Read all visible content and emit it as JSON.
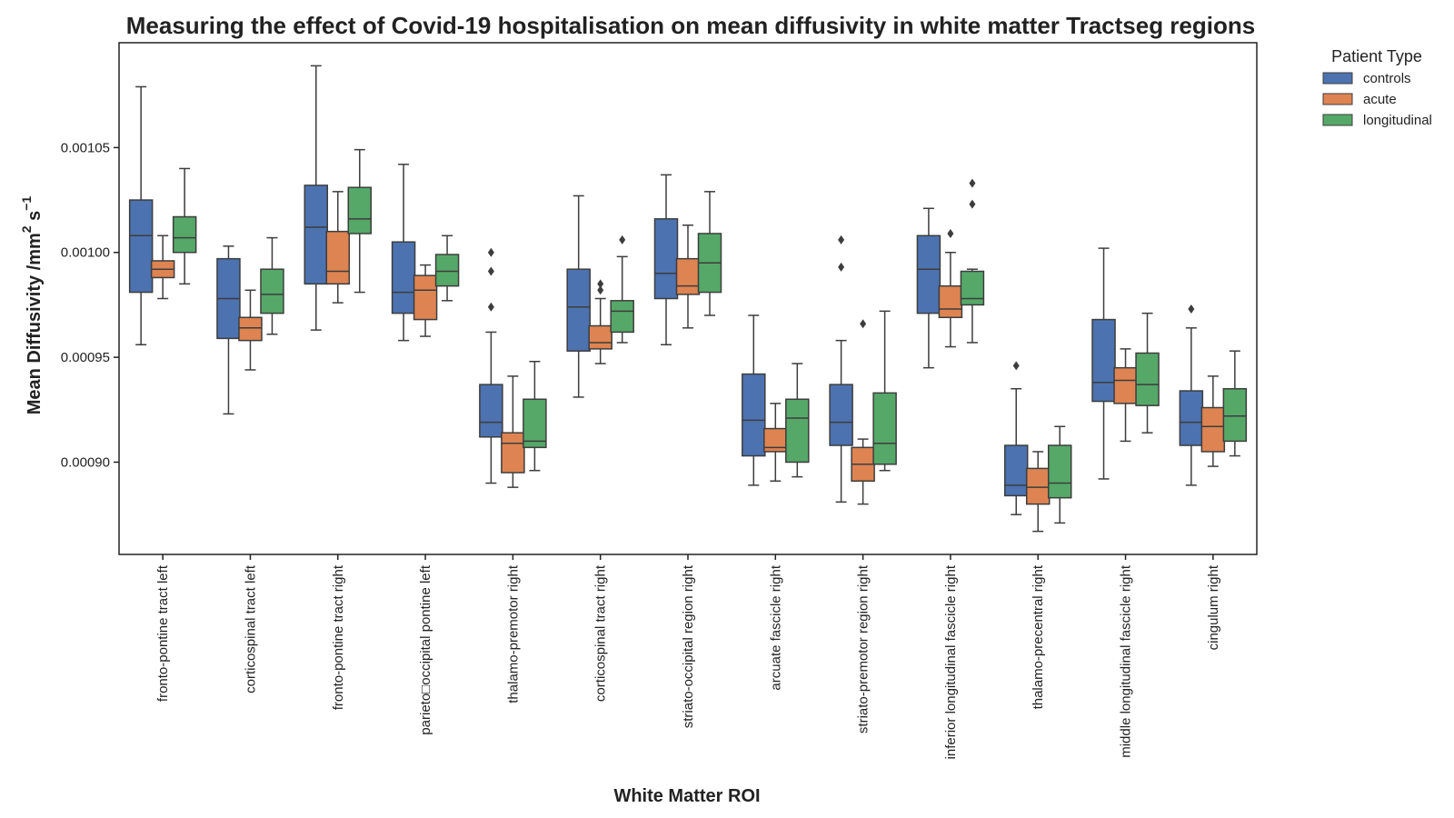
{
  "chart_data": {
    "type": "box",
    "title": "Measuring the effect of Covid-19 hospitalisation on mean diffusivity in white matter Tractseg regions",
    "xlabel": "White Matter ROI",
    "ylabel_main": "Mean Diffusivity /mm",
    "ylabel_sup1": "2",
    "ylabel_mid": " s",
    "ylabel_sup2": "−1",
    "ylim": [
      0.000856,
      0.0011
    ],
    "yticks": [
      0.0009,
      0.00095,
      0.001,
      0.00105
    ],
    "ytick_labels": [
      "0.00090",
      "0.00095",
      "0.00100",
      "0.00105"
    ],
    "legend": {
      "title": "Patient Type",
      "position": "outside-top-right"
    },
    "series": [
      {
        "name": "controls",
        "color": "#4c72b0"
      },
      {
        "name": "acute",
        "color": "#dd8452"
      },
      {
        "name": "longitudinal",
        "color": "#55a868"
      }
    ],
    "categories": [
      "fronto-pontine tract left",
      "corticospinal tract left",
      "fronto-pontine tract right",
      "parieto□occipital pontine left",
      "thalamo-premotor right",
      "corticospinal tract right",
      "striato-occipital region right",
      "arcuate fascicle right",
      "striato-premotor region right",
      "inferior longitudinal fascicle right",
      "thalamo-precentral right",
      "middle longitudinal fascicle right",
      "cingulum right"
    ],
    "boxes": [
      [
        {
          "whislo": 0.000956,
          "q1": 0.000981,
          "med": 0.001008,
          "q3": 0.001025,
          "whishi": 0.001079,
          "fliers": []
        },
        {
          "whislo": 0.000978,
          "q1": 0.000988,
          "med": 0.000992,
          "q3": 0.000996,
          "whishi": 0.001008,
          "fliers": []
        },
        {
          "whislo": 0.000985,
          "q1": 0.001,
          "med": 0.001007,
          "q3": 0.001017,
          "whishi": 0.00104,
          "fliers": []
        }
      ],
      [
        {
          "whislo": 0.000923,
          "q1": 0.000959,
          "med": 0.000978,
          "q3": 0.000997,
          "whishi": 0.001003,
          "fliers": []
        },
        {
          "whislo": 0.000944,
          "q1": 0.000958,
          "med": 0.000964,
          "q3": 0.000969,
          "whishi": 0.000982,
          "fliers": []
        },
        {
          "whislo": 0.000961,
          "q1": 0.000971,
          "med": 0.00098,
          "q3": 0.000992,
          "whishi": 0.001007,
          "fliers": []
        }
      ],
      [
        {
          "whislo": 0.000963,
          "q1": 0.000985,
          "med": 0.001012,
          "q3": 0.001032,
          "whishi": 0.001089,
          "fliers": []
        },
        {
          "whislo": 0.000976,
          "q1": 0.000985,
          "med": 0.000991,
          "q3": 0.00101,
          "whishi": 0.001029,
          "fliers": []
        },
        {
          "whislo": 0.000981,
          "q1": 0.001009,
          "med": 0.001016,
          "q3": 0.001031,
          "whishi": 0.001049,
          "fliers": []
        }
      ],
      [
        {
          "whislo": 0.000958,
          "q1": 0.000971,
          "med": 0.000981,
          "q3": 0.001005,
          "whishi": 0.001042,
          "fliers": []
        },
        {
          "whislo": 0.00096,
          "q1": 0.000968,
          "med": 0.000982,
          "q3": 0.000989,
          "whishi": 0.000994,
          "fliers": []
        },
        {
          "whislo": 0.000977,
          "q1": 0.000984,
          "med": 0.000991,
          "q3": 0.000999,
          "whishi": 0.001008,
          "fliers": []
        }
      ],
      [
        {
          "whislo": 0.00089,
          "q1": 0.000912,
          "med": 0.000919,
          "q3": 0.000937,
          "whishi": 0.000962,
          "fliers": [
            0.000974,
            0.000991,
            0.001
          ]
        },
        {
          "whislo": 0.000888,
          "q1": 0.000895,
          "med": 0.000909,
          "q3": 0.000914,
          "whishi": 0.000941,
          "fliers": []
        },
        {
          "whislo": 0.000896,
          "q1": 0.000907,
          "med": 0.00091,
          "q3": 0.00093,
          "whishi": 0.000948,
          "fliers": []
        }
      ],
      [
        {
          "whislo": 0.000931,
          "q1": 0.000953,
          "med": 0.000974,
          "q3": 0.000992,
          "whishi": 0.001027,
          "fliers": []
        },
        {
          "whislo": 0.000947,
          "q1": 0.000954,
          "med": 0.000957,
          "q3": 0.000965,
          "whishi": 0.000978,
          "fliers": [
            0.000982,
            0.000985
          ]
        },
        {
          "whislo": 0.000957,
          "q1": 0.000962,
          "med": 0.000972,
          "q3": 0.000977,
          "whishi": 0.000998,
          "fliers": [
            0.001006
          ]
        }
      ],
      [
        {
          "whislo": 0.000956,
          "q1": 0.000978,
          "med": 0.00099,
          "q3": 0.001016,
          "whishi": 0.001037,
          "fliers": []
        },
        {
          "whislo": 0.000964,
          "q1": 0.00098,
          "med": 0.000984,
          "q3": 0.000997,
          "whishi": 0.001013,
          "fliers": []
        },
        {
          "whislo": 0.00097,
          "q1": 0.000981,
          "med": 0.000995,
          "q3": 0.001009,
          "whishi": 0.001029,
          "fliers": []
        }
      ],
      [
        {
          "whislo": 0.000889,
          "q1": 0.000903,
          "med": 0.00092,
          "q3": 0.000942,
          "whishi": 0.00097,
          "fliers": []
        },
        {
          "whislo": 0.000891,
          "q1": 0.000905,
          "med": 0.000907,
          "q3": 0.000916,
          "whishi": 0.000928,
          "fliers": []
        },
        {
          "whislo": 0.000893,
          "q1": 0.0009,
          "med": 0.000921,
          "q3": 0.00093,
          "whishi": 0.000947,
          "fliers": []
        }
      ],
      [
        {
          "whislo": 0.000881,
          "q1": 0.000908,
          "med": 0.000919,
          "q3": 0.000937,
          "whishi": 0.000958,
          "fliers": [
            0.000993,
            0.001006
          ]
        },
        {
          "whislo": 0.00088,
          "q1": 0.000891,
          "med": 0.000899,
          "q3": 0.000907,
          "whishi": 0.000911,
          "fliers": [
            0.000966
          ]
        },
        {
          "whislo": 0.000896,
          "q1": 0.000899,
          "med": 0.000909,
          "q3": 0.000933,
          "whishi": 0.000972,
          "fliers": []
        }
      ],
      [
        {
          "whislo": 0.000945,
          "q1": 0.000971,
          "med": 0.000992,
          "q3": 0.001008,
          "whishi": 0.001021,
          "fliers": []
        },
        {
          "whislo": 0.000955,
          "q1": 0.000969,
          "med": 0.000973,
          "q3": 0.000984,
          "whishi": 0.001,
          "fliers": [
            0.001009
          ]
        },
        {
          "whislo": 0.000957,
          "q1": 0.000975,
          "med": 0.000978,
          "q3": 0.000991,
          "whishi": 0.000992,
          "fliers": [
            0.001023,
            0.001033
          ]
        }
      ],
      [
        {
          "whislo": 0.000875,
          "q1": 0.000884,
          "med": 0.000889,
          "q3": 0.000908,
          "whishi": 0.000935,
          "fliers": [
            0.000946
          ]
        },
        {
          "whislo": 0.000867,
          "q1": 0.00088,
          "med": 0.000888,
          "q3": 0.000897,
          "whishi": 0.000905,
          "fliers": []
        },
        {
          "whislo": 0.000871,
          "q1": 0.000883,
          "med": 0.00089,
          "q3": 0.000908,
          "whishi": 0.000917,
          "fliers": []
        }
      ],
      [
        {
          "whislo": 0.000892,
          "q1": 0.000929,
          "med": 0.000938,
          "q3": 0.000968,
          "whishi": 0.001002,
          "fliers": []
        },
        {
          "whislo": 0.00091,
          "q1": 0.000928,
          "med": 0.000939,
          "q3": 0.000945,
          "whishi": 0.000954,
          "fliers": []
        },
        {
          "whislo": 0.000914,
          "q1": 0.000927,
          "med": 0.000937,
          "q3": 0.000952,
          "whishi": 0.000971,
          "fliers": []
        }
      ],
      [
        {
          "whislo": 0.000889,
          "q1": 0.000908,
          "med": 0.000919,
          "q3": 0.000934,
          "whishi": 0.000964,
          "fliers": [
            0.000973
          ]
        },
        {
          "whislo": 0.000898,
          "q1": 0.000905,
          "med": 0.000917,
          "q3": 0.000926,
          "whishi": 0.000941,
          "fliers": []
        },
        {
          "whislo": 0.000903,
          "q1": 0.00091,
          "med": 0.000922,
          "q3": 0.000935,
          "whishi": 0.000953,
          "fliers": []
        }
      ]
    ]
  }
}
